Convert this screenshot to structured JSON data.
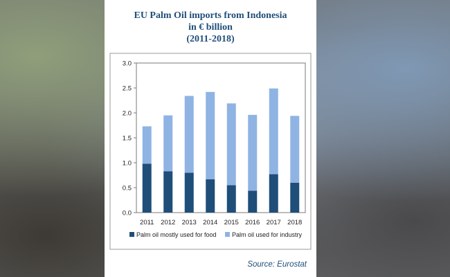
{
  "chart_data": {
    "type": "bar",
    "stacked": true,
    "title_lines": [
      "EU Palm Oil imports from Indonesia",
      "in € billion",
      "(2011-2018)"
    ],
    "categories": [
      "2011",
      "2012",
      "2013",
      "2014",
      "2015",
      "2016",
      "2017",
      "2018"
    ],
    "series": [
      {
        "name": "Palm oil mostly used for food",
        "color": "#1f4e79",
        "values": [
          0.98,
          0.83,
          0.8,
          0.67,
          0.55,
          0.44,
          0.77,
          0.6
        ]
      },
      {
        "name": "Palm oil used for industry",
        "color": "#8fb4e3",
        "values": [
          0.75,
          1.12,
          1.54,
          1.75,
          1.64,
          1.52,
          1.72,
          1.34
        ]
      }
    ],
    "ylim": [
      0,
      3.0
    ],
    "yticks": [
      "0.0",
      "0.5",
      "1.0",
      "1.5",
      "2.0",
      "2.5",
      "3.0"
    ],
    "grid": false,
    "legend_position": "bottom",
    "source": "Source: Eurostat"
  }
}
